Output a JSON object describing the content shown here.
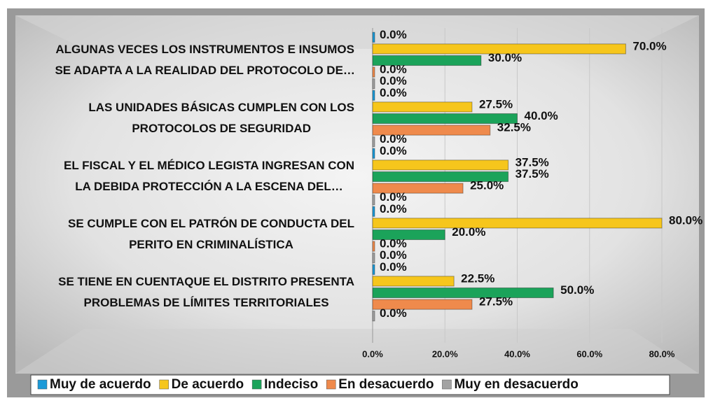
{
  "chart_data": {
    "type": "hbar",
    "categories": [
      [
        "ALGUNAS VECES LOS INSTRUMENTOS E INSUMOS",
        "SE ADAPTA A LA REALIDAD DEL PROTOCOLO DE…"
      ],
      [
        "LAS UNIDADES BÁSICAS CUMPLEN CON LOS",
        "PROTOCOLOS DE SEGURIDAD"
      ],
      [
        "EL FISCAL Y EL MÉDICO LEGISTA INGRESAN CON",
        "LA DEBIDA PROTECCIÓN A LA ESCENA DEL…"
      ],
      [
        "SE CUMPLE CON EL PATRÓN DE CONDUCTA DEL",
        "PERITO EN CRIMINALÍSTICA"
      ],
      [
        "SE TIENE EN CUENTAQUE EL DISTRITO PRESENTA",
        "PROBLEMAS DE LÍMITES TERRITORIALES"
      ]
    ],
    "series": [
      {
        "name": "Muy de acuerdo",
        "color": "#1c9ad8",
        "values": [
          0,
          0,
          0,
          0,
          0
        ],
        "value_labels": [
          "0.0%",
          "0.0%",
          "0.0%",
          "0.0%",
          "0.0%"
        ]
      },
      {
        "name": "De acuerdo",
        "color": "#f6c61c",
        "values": [
          70,
          27.5,
          37.5,
          80,
          22.5
        ],
        "value_labels": [
          "70.0%",
          "27.5%",
          "37.5%",
          "80.0%",
          "22.5%"
        ]
      },
      {
        "name": "Indeciso",
        "color": "#1ba35a",
        "values": [
          30,
          40,
          37.5,
          20,
          50
        ],
        "value_labels": [
          "30.0%",
          "40.0%",
          "37.5%",
          "20.0%",
          "50.0%"
        ]
      },
      {
        "name": "En desacuerdo",
        "color": "#ef8a4c",
        "values": [
          0,
          32.5,
          25,
          0,
          27.5
        ],
        "value_labels": [
          "0.0%",
          "32.5%",
          "25.0%",
          "0.0%",
          "27.5%"
        ]
      },
      {
        "name": "Muy en desacuerdo",
        "color": "#a3a3a3",
        "values": [
          0,
          0,
          0,
          0,
          0
        ],
        "value_labels": [
          "0.0%",
          "0.0%",
          "0.0%",
          "0.0%",
          "0.0%"
        ]
      }
    ],
    "xlim": [
      0,
      80
    ],
    "xticks": [
      {
        "value": 0,
        "label": "0.0%"
      },
      {
        "value": 20,
        "label": "20.0%"
      },
      {
        "value": 40,
        "label": "40.0%"
      },
      {
        "value": 60,
        "label": "60.0%"
      },
      {
        "value": 80,
        "label": "80.0%"
      }
    ],
    "grid": true,
    "legend": "bottom"
  }
}
